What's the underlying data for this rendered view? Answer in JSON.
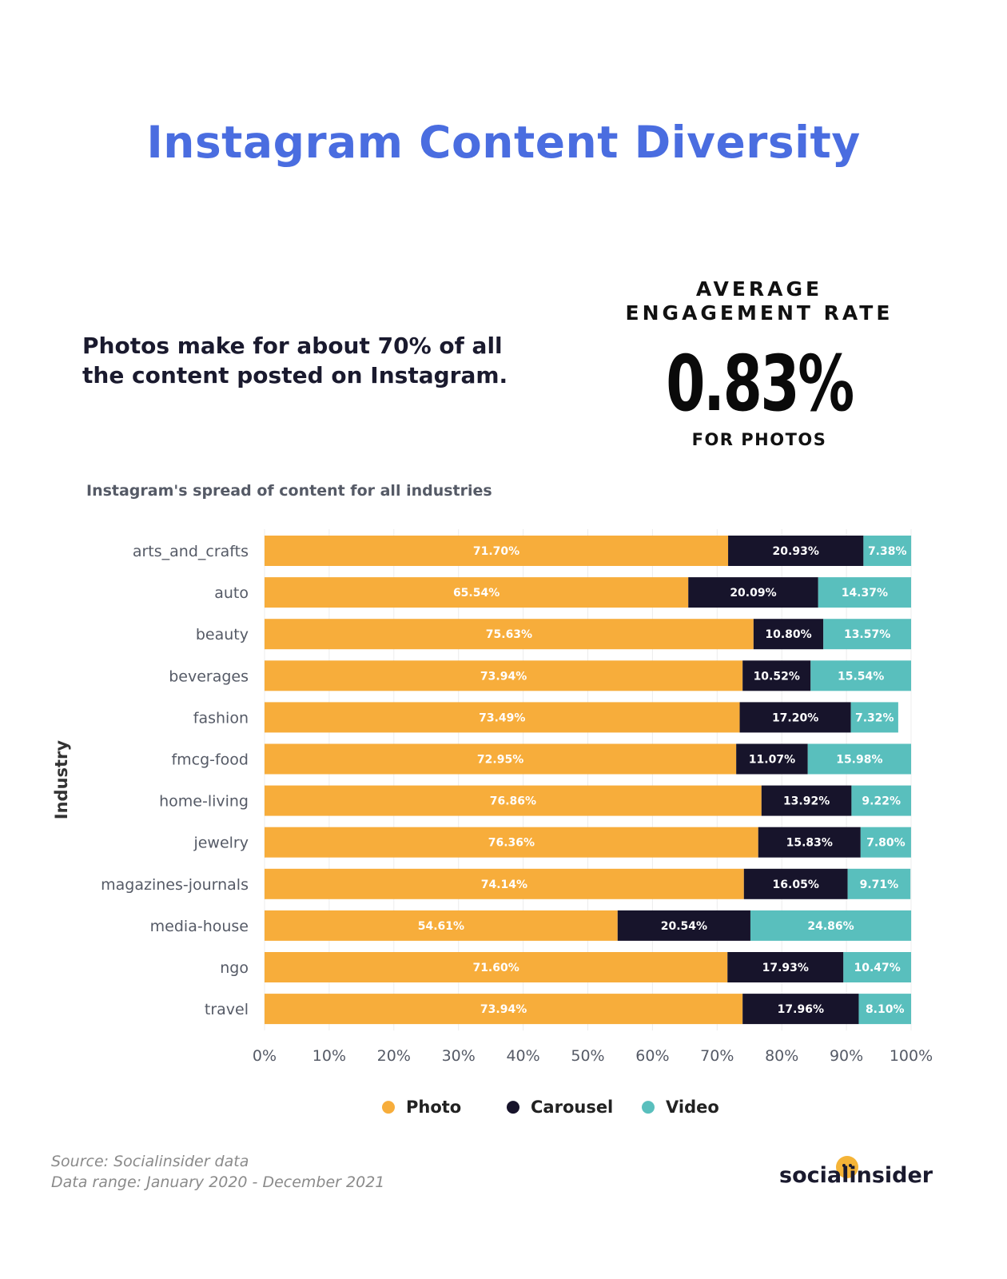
{
  "header": {
    "title": "Instagram Content Diversity"
  },
  "headline": "Photos make for about 70% of all the content posted on Instagram.",
  "metric": {
    "label_line1": "AVERAGE",
    "label_line2": "ENGAGEMENT RATE",
    "value": "0.83%",
    "sub": "FOR PHOTOS"
  },
  "chart_subtitle": "Instagram's spread of content for all industries",
  "colors": {
    "photo": "#f7ad3b",
    "carousel": "#17142b",
    "video": "#59bfbd",
    "title": "#4a6de0"
  },
  "chart_data": {
    "type": "bar",
    "orientation": "horizontal",
    "stacked": true,
    "title": "Instagram's spread of content for all industries",
    "ylabel": "Industry",
    "xlabel": "",
    "xlim": [
      0,
      100
    ],
    "xticks": [
      "0%",
      "10%",
      "20%",
      "30%",
      "40%",
      "50%",
      "60%",
      "70%",
      "80%",
      "90%",
      "100%"
    ],
    "categories": [
      "arts_and_crafts",
      "auto",
      "beauty",
      "beverages",
      "fashion",
      "fmcg-food",
      "home-living",
      "jewelry",
      "magazines-journals",
      "media-house",
      "ngo",
      "travel"
    ],
    "series": [
      {
        "name": "Photo",
        "color": "#f7ad3b",
        "labelColor": "#ffffff",
        "values": [
          71.7,
          65.54,
          75.63,
          73.94,
          73.49,
          72.95,
          76.86,
          76.36,
          74.14,
          54.61,
          71.6,
          73.94
        ],
        "labels": [
          "71.70%",
          "65.54%",
          "75.63%",
          "73.94%",
          "73.49%",
          "72.95%",
          "76.86%",
          "76.36%",
          "74.14%",
          "54.61%",
          "71.60%",
          "73.94%"
        ]
      },
      {
        "name": "Carousel",
        "color": "#17142b",
        "labelColor": "#ffffff",
        "values": [
          20.93,
          20.09,
          10.8,
          10.52,
          17.2,
          11.07,
          13.92,
          15.83,
          16.05,
          20.54,
          17.93,
          17.96
        ],
        "labels": [
          "20.93%",
          "20.09%",
          "10.80%",
          "10.52%",
          "17.20%",
          "11.07%",
          "13.92%",
          "15.83%",
          "16.05%",
          "20.54%",
          "17.93%",
          "17.96%"
        ]
      },
      {
        "name": "Video",
        "color": "#59bfbd",
        "labelColor": "#ffffff",
        "values": [
          7.38,
          14.37,
          13.57,
          15.54,
          7.32,
          15.98,
          9.22,
          7.8,
          9.71,
          24.86,
          10.47,
          8.1
        ],
        "labels": [
          "7.38%",
          "14.37%",
          "13.57%",
          "15.54%",
          "7.32%",
          "15.98%",
          "9.22%",
          "7.80%",
          "9.71%",
          "24.86%",
          "10.47%",
          "8.10%"
        ]
      }
    ],
    "legend": [
      "Photo",
      "Carousel",
      "Video"
    ],
    "legend_position": "bottom"
  },
  "footer": {
    "source": "Source: Socialinsider data",
    "range": "Data range: January 2020 - December 2021"
  },
  "brand": {
    "logo_text": "socialinsider",
    "logo_icon": "smile-dot-icon"
  }
}
